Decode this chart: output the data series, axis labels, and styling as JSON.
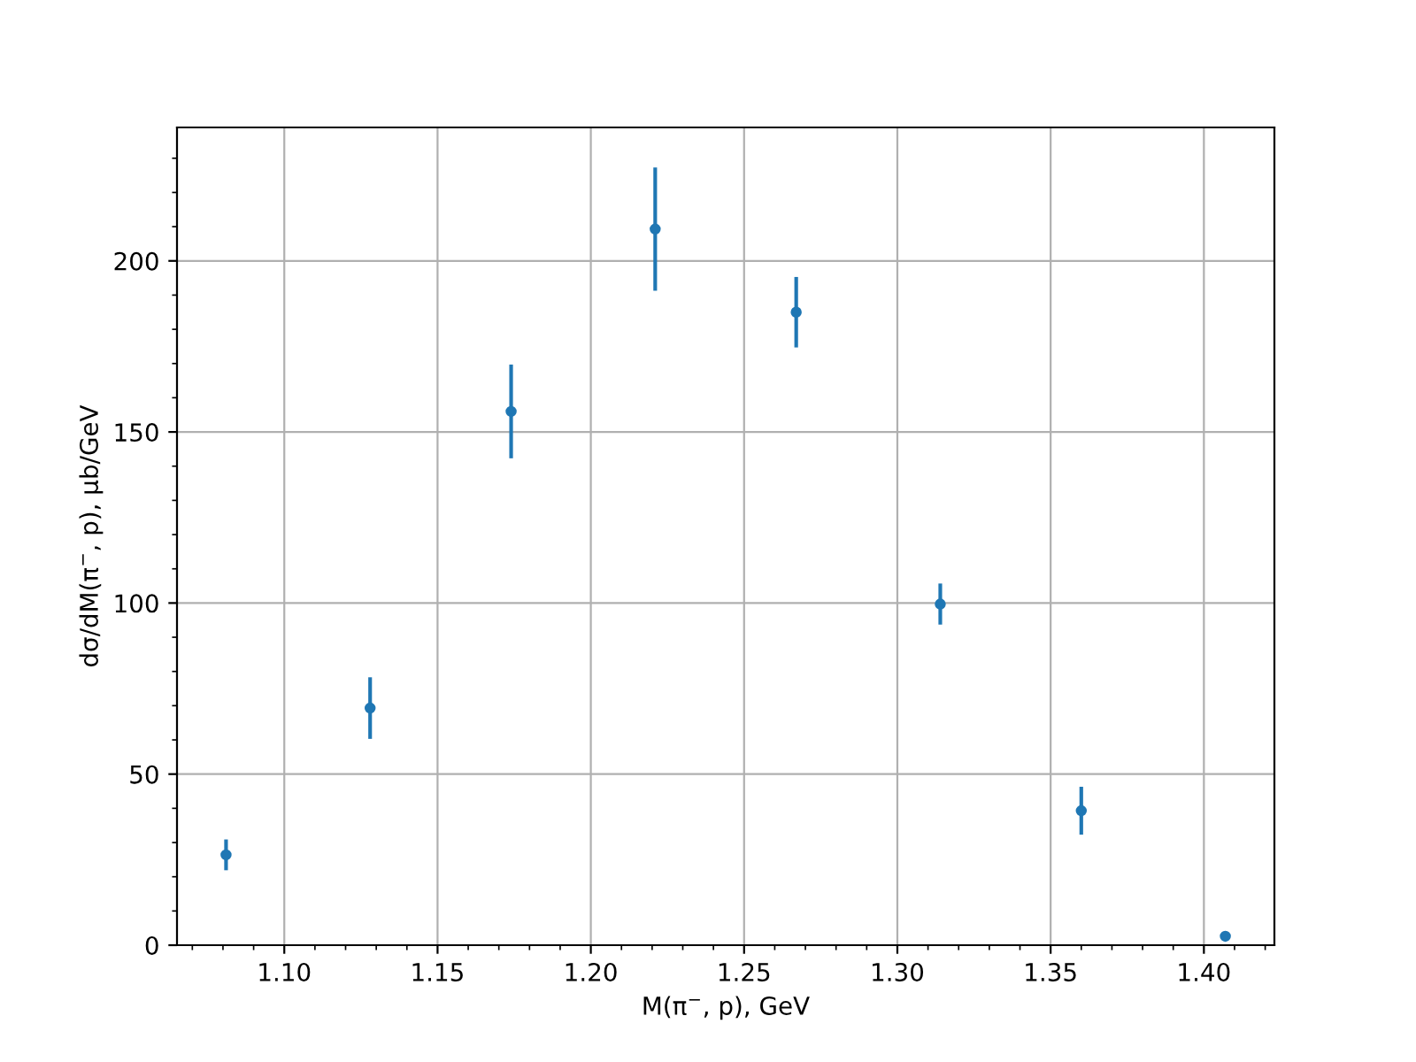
{
  "chart_data": {
    "type": "scatter",
    "xlabel": "M(π$^{−}$, p), GeV",
    "ylabel": "dσ/dM(π$^{−}$, p), μb/GeV",
    "x": [
      1.081,
      1.128,
      1.174,
      1.221,
      1.267,
      1.314,
      1.36,
      1.407
    ],
    "series": [
      {
        "color": "#1f77b4",
        "values": [
          26.4,
          69.3,
          156,
          209.3,
          185,
          99.7,
          39.3,
          2.6
        ],
        "errors": [
          4.5,
          9,
          13.7,
          18,
          10.3,
          6,
          7,
          null
        ]
      }
    ],
    "xlim": [
      1.065,
      1.423
    ],
    "xticks": [
      {
        "value": 1.1,
        "label": "1.10"
      },
      {
        "value": 1.15,
        "label": "1.15"
      },
      {
        "value": 1.2,
        "label": "1.20"
      },
      {
        "value": 1.25,
        "label": "1.25"
      },
      {
        "value": 1.3,
        "label": "1.30"
      },
      {
        "value": 1.35,
        "label": "1.35"
      },
      {
        "value": 1.4,
        "label": "1.40"
      }
    ],
    "ylim": [
      0,
      239
    ],
    "yticks": [
      0,
      50,
      100,
      150,
      200
    ],
    "grid": true,
    "marker": "circle"
  }
}
